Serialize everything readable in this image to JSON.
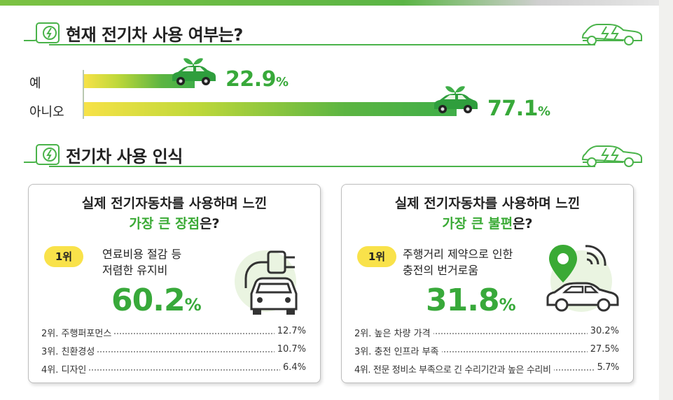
{
  "section1": {
    "title": "현재 전기차 사용 여부는?"
  },
  "section2": {
    "title": "전기차 사용 인식"
  },
  "chart_data": [
    {
      "type": "bar",
      "categories": [
        "예",
        "아니오"
      ],
      "values": [
        22.9,
        77.1
      ],
      "value_labels": [
        "22.9",
        "77.1"
      ],
      "unit": "%",
      "title": "현재 전기차 사용 여부는?",
      "xlabel": "",
      "ylabel": "",
      "xlim": [
        0,
        100
      ],
      "orientation": "horizontal",
      "grid": false
    },
    {
      "type": "table",
      "title": "실제 전기자동차를 사용하며 느낀 가장 큰 장점은?",
      "question_line1": "실제 전기자동차를 사용하며 느낀",
      "question_highlight": "가장 큰 장점",
      "question_suffix": "은?",
      "rank1_badge": "1위",
      "rank1_label_line1": "연료비용 절감 등",
      "rank1_label_line2": "저렴한 유지비",
      "rank1_value": "60.2",
      "unit": "%",
      "rows": [
        {
          "rank": "2위.",
          "label": "주행퍼포먼스",
          "value": "12.7%"
        },
        {
          "rank": "3위.",
          "label": "친환경성",
          "value": "10.7%"
        },
        {
          "rank": "4위.",
          "label": "디자인",
          "value": "6.4%"
        }
      ]
    },
    {
      "type": "table",
      "title": "실제 전기자동차를 사용하며 느낀 가장 큰 불편은?",
      "question_line1": "실제 전기자동차를 사용하며 느낀",
      "question_highlight": "가장 큰 불편",
      "question_suffix": "은?",
      "rank1_badge": "1위",
      "rank1_label_line1": "주행거리 제약으로 인한",
      "rank1_label_line2": "충전의 번거로움",
      "rank1_value": "31.8",
      "unit": "%",
      "rows": [
        {
          "rank": "2위.",
          "label": "높은 차량 가격",
          "value": "30.2%"
        },
        {
          "rank": "3위.",
          "label": "충전 인프라 부족",
          "value": "27.5%"
        },
        {
          "rank": "4위.",
          "label": "전문 정비소 부족으로 긴 수리기간과 높은 수리비",
          "value": "5.7%"
        }
      ]
    }
  ],
  "colors": {
    "accent_green": "#3aaa35",
    "badge_yellow": "#f9e24a",
    "bar_start": "#f7e247",
    "bar_end": "#3fae48"
  },
  "icons": {
    "section": "ev-charger-plug-icon",
    "section_right": "ev-car-outline-icon",
    "bar_marker": "eco-car-leaf-icon",
    "card_advantage": "plug-car-icon",
    "card_inconvenience": "map-pin-car-icon"
  }
}
